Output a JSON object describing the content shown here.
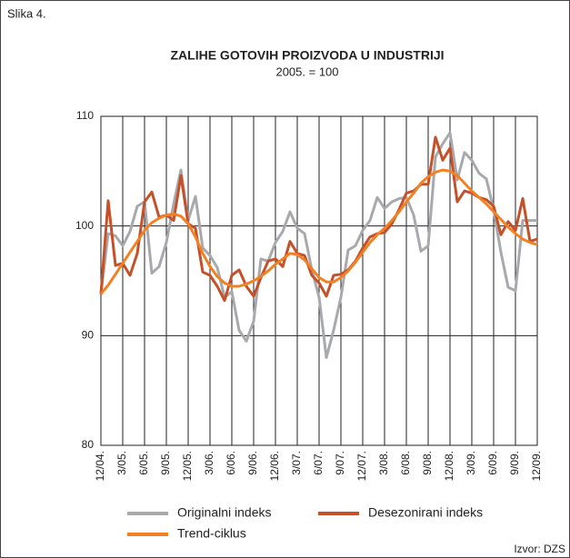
{
  "chart_data": {
    "type": "line",
    "figure_label": "Slika 4.",
    "title": "ZALIHE GOTOVIH PROIZVODA U INDUSTRIJI",
    "subtitle": "2005. = 100",
    "source": "Izvor: DZS",
    "categories": [
      "12/04.",
      null,
      null,
      "3/05.",
      null,
      null,
      "6/05.",
      null,
      null,
      "9/05.",
      null,
      null,
      "12/05.",
      null,
      null,
      "3/06.",
      null,
      null,
      "6/06.",
      null,
      null,
      "9/06.",
      null,
      null,
      "12/06.",
      null,
      null,
      "3/07.",
      null,
      null,
      "6/07.",
      null,
      null,
      "9/07.",
      null,
      null,
      "12/07.",
      null,
      null,
      "3/08.",
      null,
      null,
      "6/08.",
      null,
      null,
      "9/08.",
      null,
      null,
      "12/08.",
      null,
      null,
      "3/09.",
      null,
      null,
      "6/09.",
      null,
      null,
      "9/09.",
      null,
      null,
      "12/09."
    ],
    "series": [
      {
        "name": "Originalni indeks",
        "color": "#a7a9ac",
        "values": [
          93.8,
          99.3,
          99.1,
          98.2,
          99.5,
          101.8,
          102.2,
          95.7,
          96.3,
          98.5,
          102.0,
          105.1,
          100.5,
          102.7,
          98.0,
          97.3,
          96.2,
          93.5,
          94.0,
          90.5,
          89.5,
          91.3,
          97.0,
          96.8,
          98.5,
          99.5,
          101.3,
          99.8,
          99.3,
          96.0,
          93.5,
          88.0,
          90.5,
          93.5,
          97.8,
          98.2,
          99.6,
          100.5,
          102.6,
          101.6,
          102.2,
          102.5,
          102.6,
          101.0,
          97.7,
          98.2,
          106.3,
          107.5,
          108.5,
          104.2,
          106.7,
          106.0,
          104.8,
          104.3,
          101.5,
          97.6,
          94.4,
          94.1,
          100.5,
          100.5,
          100.5
        ]
      },
      {
        "name": "Desezonirani indeks",
        "color": "#c5512b",
        "values": [
          93.8,
          102.3,
          96.4,
          96.6,
          95.5,
          97.5,
          102.2,
          103.1,
          100.8,
          101.0,
          100.5,
          104.6,
          100.2,
          99.8,
          95.8,
          95.5,
          94.5,
          93.2,
          95.5,
          96.0,
          94.5,
          93.6,
          95.3,
          96.8,
          97.0,
          96.3,
          98.6,
          97.5,
          97.3,
          95.5,
          94.8,
          93.6,
          95.5,
          95.6,
          96.0,
          96.8,
          98.0,
          99.0,
          99.3,
          99.4,
          100.2,
          101.5,
          103.0,
          103.2,
          103.8,
          103.8,
          108.1,
          106.0,
          107.1,
          102.2,
          103.2,
          103.0,
          102.6,
          102.4,
          101.8,
          99.2,
          100.4,
          99.6,
          102.5,
          98.6,
          98.8
        ]
      },
      {
        "name": "Trend-ciklus",
        "color": "#f28124",
        "values": [
          93.8,
          94.6,
          95.6,
          96.6,
          97.6,
          98.6,
          99.6,
          100.3,
          100.7,
          101.0,
          101.1,
          100.9,
          100.2,
          99.0,
          97.5,
          96.3,
          95.4,
          94.8,
          94.5,
          94.5,
          94.7,
          95.0,
          95.4,
          95.9,
          96.5,
          97.0,
          97.5,
          97.4,
          96.9,
          96.1,
          95.3,
          94.9,
          94.9,
          95.3,
          95.9,
          96.7,
          97.6,
          98.5,
          99.2,
          99.8,
          100.5,
          101.3,
          102.2,
          103.0,
          103.9,
          104.5,
          104.9,
          105.1,
          105.0,
          104.6,
          103.9,
          103.2,
          102.6,
          102.0,
          101.3,
          100.6,
          99.9,
          99.3,
          98.8,
          98.5,
          98.3
        ]
      }
    ],
    "ylim": [
      80,
      110
    ],
    "yticks": [
      80,
      90,
      100,
      110
    ],
    "grid": true
  }
}
